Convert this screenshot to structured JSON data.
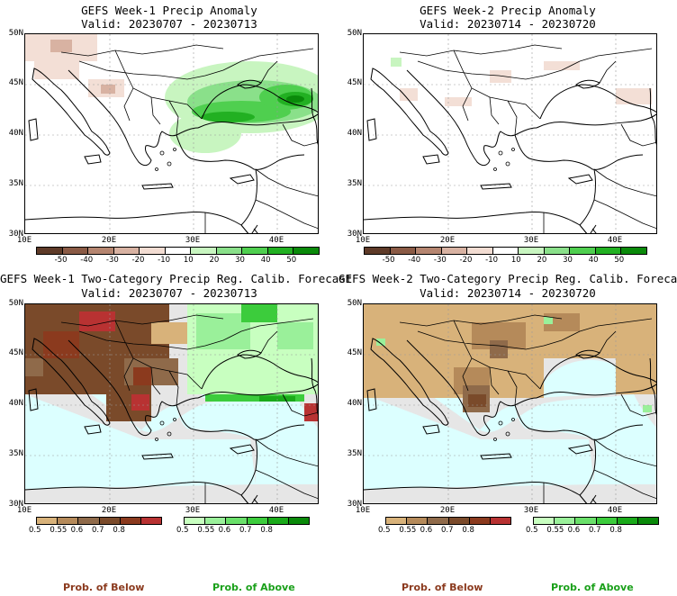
{
  "panels": [
    {
      "title1": "GEFS Week-1 Precip Anomaly",
      "title2": "Valid: 20230707 - 20230713"
    },
    {
      "title1": "GEFS Week-2 Precip Anomaly",
      "title2": "Valid: 20230714 - 20230720"
    },
    {
      "title1": "GEFS Week-1 Two-Category Precip Reg. Calib. Forecast",
      "title2": "Valid: 20230707 - 20230713"
    },
    {
      "title1": "GEFS Week-2 Two-Category Precip Reg. Calib. Forecast",
      "title2": "Valid: 20230714 - 20230720"
    }
  ],
  "axes": {
    "lat_labels": [
      "50N",
      "45N",
      "40N",
      "35N",
      "30N"
    ],
    "lon_labels": [
      "10E",
      "20E",
      "30E",
      "40E"
    ]
  },
  "anomaly_colorbar": {
    "labels": [
      "-50",
      "-40",
      "-30",
      "-20",
      "-10",
      "10",
      "20",
      "30",
      "40",
      "50"
    ],
    "colors": [
      "#5e3a28",
      "#8a5a45",
      "#b58570",
      "#d8b2a2",
      "#f2dcd2",
      "#ffffff",
      "#c8f5c0",
      "#8ae08a",
      "#4fcf4f",
      "#22b022",
      "#0a8a0a"
    ]
  },
  "prob_below_colorbar": {
    "labels": [
      "0.5",
      "0.55",
      "0.6",
      "0.7",
      "0.8"
    ],
    "colors": [
      "#d8b27a",
      "#b58a5a",
      "#8f6a4a",
      "#7a4a2a",
      "#8b3a1e",
      "#b83232"
    ]
  },
  "prob_above_colorbar": {
    "labels": [
      "0.5",
      "0.55",
      "0.6",
      "0.7",
      "0.8"
    ],
    "colors": [
      "#c8ffc0",
      "#9af09a",
      "#6ae06a",
      "#3ccc3c",
      "#1aaa1a",
      "#0a8a0a"
    ]
  },
  "footer": {
    "below_label": "Prob. of Below",
    "above_label": "Prob. of Above",
    "below_color": "#8b3a1e",
    "above_color": "#1aa01a"
  }
}
